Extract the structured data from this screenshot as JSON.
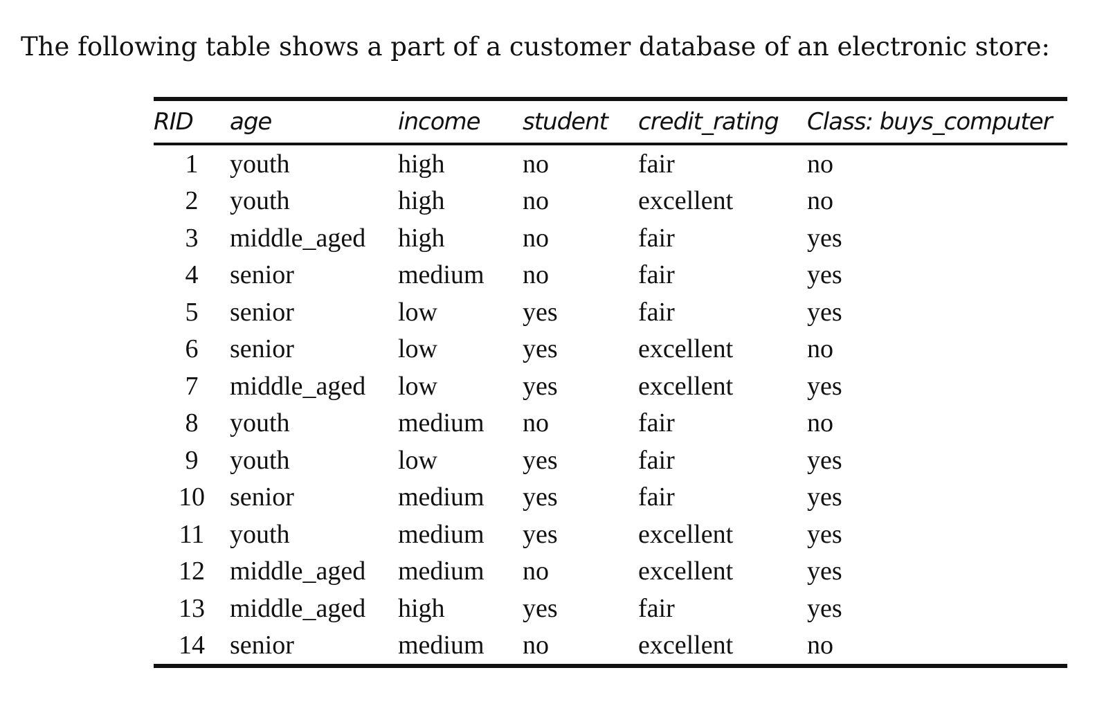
{
  "intro": "The following table shows a part of a customer database of an electronic store:",
  "table": {
    "headers": [
      "RID",
      "age",
      "income",
      "student",
      "credit_rating",
      "Class: buys_computer"
    ],
    "rows": [
      [
        "1",
        "youth",
        "high",
        "no",
        "fair",
        "no"
      ],
      [
        "2",
        "youth",
        "high",
        "no",
        "excellent",
        "no"
      ],
      [
        "3",
        "middle_aged",
        "high",
        "no",
        "fair",
        "yes"
      ],
      [
        "4",
        "senior",
        "medium",
        "no",
        "fair",
        "yes"
      ],
      [
        "5",
        "senior",
        "low",
        "yes",
        "fair",
        "yes"
      ],
      [
        "6",
        "senior",
        "low",
        "yes",
        "excellent",
        "no"
      ],
      [
        "7",
        "middle_aged",
        "low",
        "yes",
        "excellent",
        "yes"
      ],
      [
        "8",
        "youth",
        "medium",
        "no",
        "fair",
        "no"
      ],
      [
        "9",
        "youth",
        "low",
        "yes",
        "fair",
        "yes"
      ],
      [
        "10",
        "senior",
        "medium",
        "yes",
        "fair",
        "yes"
      ],
      [
        "11",
        "youth",
        "medium",
        "yes",
        "excellent",
        "yes"
      ],
      [
        "12",
        "middle_aged",
        "medium",
        "no",
        "excellent",
        "yes"
      ],
      [
        "13",
        "middle_aged",
        "high",
        "yes",
        "fair",
        "yes"
      ],
      [
        "14",
        "senior",
        "medium",
        "no",
        "excellent",
        "no"
      ]
    ]
  }
}
